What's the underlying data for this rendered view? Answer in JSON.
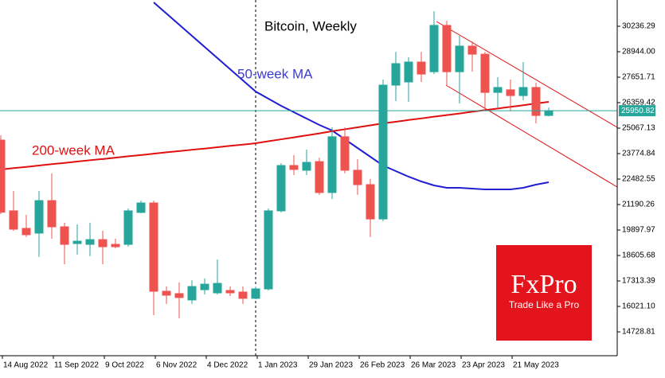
{
  "chart_data": {
    "type": "candlestick",
    "title": "Bitcoin, Weekly",
    "categories": [
      "14 Aug 2022",
      null,
      null,
      null,
      "11 Sep 2022",
      null,
      null,
      null,
      "9 Oct 2022",
      null,
      null,
      null,
      "6 Nov 2022",
      null,
      null,
      null,
      "4 Dec 2022",
      null,
      null,
      null,
      "1 Jan 2023",
      null,
      null,
      null,
      "29 Jan 2023",
      null,
      null,
      null,
      "26 Feb 2023",
      null,
      null,
      null,
      "26 Mar 2023",
      null,
      null,
      null,
      "23 Apr 2023",
      null,
      null,
      null,
      "21 May 2023",
      null,
      null,
      null
    ],
    "open": [
      24460,
      20870,
      19980,
      19740,
      21390,
      20060,
      19210,
      19170,
      19410,
      19170,
      19170,
      20790,
      21270,
      16790,
      16670,
      16350,
      16870,
      16710,
      16830,
      16750,
      16430,
      16910,
      20870,
      23170,
      22930,
      23370,
      21800,
      24630,
      22930,
      22200,
      20460,
      27250,
      27410,
      28420,
      27930,
      30280,
      27930,
      29230,
      28820,
      26880,
      27010,
      26720,
      27130,
      25710
    ],
    "high": [
      24700,
      21880,
      20670,
      21880,
      22770,
      20270,
      20180,
      20270,
      19860,
      19460,
      20990,
      21390,
      21390,
      17030,
      17240,
      17350,
      17440,
      18400,
      17030,
      17030,
      17030,
      20990,
      23290,
      23700,
      23980,
      23570,
      25110,
      25110,
      23490,
      22490,
      27530,
      28940,
      28660,
      28940,
      31000,
      30520,
      29750,
      29470,
      28940,
      27650,
      27530,
      28420,
      27370,
      26110
    ],
    "low": [
      20700,
      19860,
      19540,
      18530,
      19460,
      18160,
      18650,
      18570,
      18160,
      18970,
      19050,
      20750,
      15580,
      16150,
      15420,
      16150,
      16630,
      16630,
      16550,
      16150,
      16390,
      16830,
      20790,
      22690,
      22690,
      21680,
      21470,
      22770,
      21680,
      19540,
      20340,
      26440,
      26400,
      27410,
      27810,
      27210,
      26320,
      27930,
      25920,
      26120,
      25920,
      26480,
      25310,
      25670
    ],
    "close": [
      20800,
      19940,
      19660,
      21390,
      20060,
      19170,
      19330,
      19410,
      19050,
      19050,
      20870,
      21270,
      16790,
      16590,
      16470,
      17030,
      17150,
      17190,
      16710,
      16430,
      16910,
      20870,
      23170,
      22970,
      23330,
      21800,
      24630,
      22930,
      22200,
      20460,
      27250,
      28340,
      28420,
      27810,
      30280,
      27930,
      29230,
      28820,
      26880,
      27130,
      26720,
      27130,
      25710,
      25950
    ],
    "up_color": "#26a69a",
    "down_color": "#ef5350",
    "series": [
      {
        "name": "50-week MA",
        "color": "#1f1fd1",
        "values": [
          null,
          null,
          null,
          null,
          null,
          null,
          null,
          null,
          null,
          null,
          null,
          null,
          31448,
          30883,
          30317,
          29752,
          29187,
          28621,
          28056,
          27491,
          26925,
          26562,
          26198,
          25875,
          25552,
          25229,
          24947,
          24502,
          24058,
          23614,
          23170,
          22887,
          22605,
          22362,
          22160,
          22039,
          22039,
          21999,
          21959,
          21959,
          21959,
          22039,
          22201,
          22322
        ]
      },
      {
        "name": "200-week MA",
        "color": "#e01010",
        "values": [
          22970,
          23040,
          23100,
          23170,
          23240,
          23300,
          23370,
          23440,
          23500,
          23570,
          23640,
          23700,
          23770,
          23840,
          23900,
          23970,
          24030,
          24100,
          24170,
          24230,
          24300,
          24400,
          24500,
          24600,
          24700,
          24800,
          24910,
          25010,
          25110,
          25210,
          25310,
          25390,
          25480,
          25560,
          25650,
          25730,
          25810,
          25900,
          25980,
          26060,
          26150,
          26230,
          26320,
          26400
        ]
      }
    ],
    "last_price": 25950.82,
    "last_price_color": "#26a69a",
    "ylim": [
      13519,
      31569
    ],
    "yticks": [
      30236.29,
      {
        "value": 28944.0,
        "label": "28944.00"
      },
      27651.71,
      26359.42,
      25067.13,
      23774.84,
      22482.55,
      21190.26,
      19897.97,
      18605.68,
      17313.39,
      {
        "value": 16021.1,
        "label": "16021.10"
      },
      14728.81
    ],
    "logo": {
      "brand": "FxPro",
      "tagline": "Trade Like a Pro"
    }
  }
}
